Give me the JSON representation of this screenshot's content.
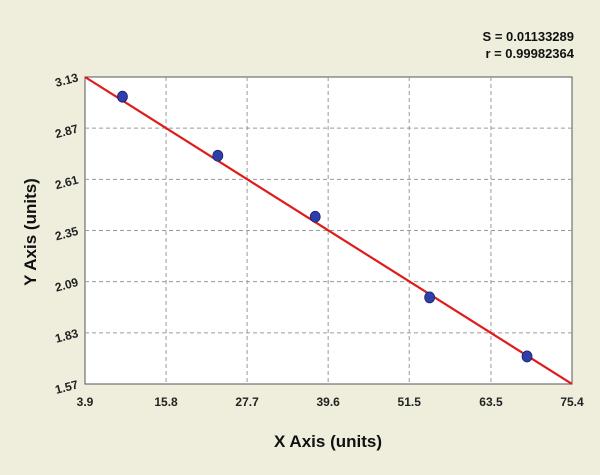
{
  "stats": {
    "s_text": "S = 0.01133289",
    "r_text": "r = 0.99982364"
  },
  "colors": {
    "background": "#efeedd",
    "plot_area": "#ffffff",
    "fit_line": "#e01b1b",
    "points": "#2f3fa8",
    "grid": "#9a9a9a"
  },
  "chart_data": {
    "type": "scatter",
    "xlabel": "X Axis (units)",
    "ylabel": "Y Axis (units)",
    "xlim": [
      3.9,
      75.4
    ],
    "ylim": [
      1.57,
      3.13
    ],
    "x_ticks": [
      "3.9",
      "15.8",
      "27.7",
      "39.6",
      "51.5",
      "63.5",
      "75.4"
    ],
    "y_ticks": [
      "1.57",
      "1.83",
      "2.09",
      "2.35",
      "2.61",
      "2.87",
      "3.13"
    ],
    "grid": true,
    "points": [
      {
        "x": 9.4,
        "y": 3.03
      },
      {
        "x": 23.4,
        "y": 2.73
      },
      {
        "x": 37.7,
        "y": 2.42
      },
      {
        "x": 54.5,
        "y": 2.01
      },
      {
        "x": 68.8,
        "y": 1.71
      }
    ],
    "fit_line": {
      "x": [
        3.9,
        75.4
      ],
      "y": [
        3.13,
        1.57
      ]
    }
  }
}
